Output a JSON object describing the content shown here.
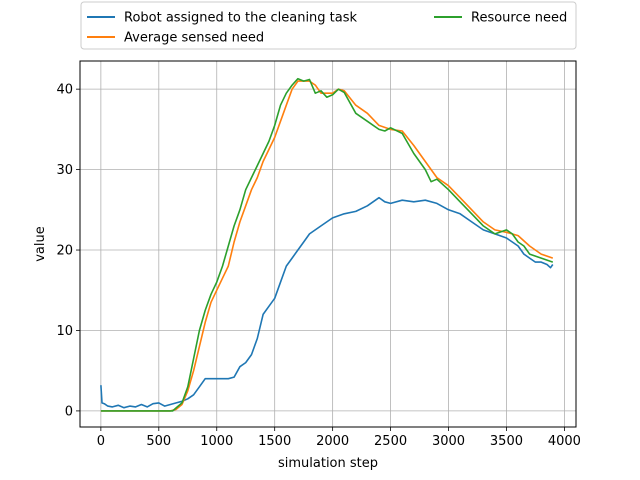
{
  "chart_data": {
    "type": "line",
    "title": "",
    "xlabel": "simulation step",
    "ylabel": "value",
    "xlim": [
      -180,
      4100
    ],
    "ylim": [
      -2,
      43.5
    ],
    "xticks": [
      0,
      500,
      1000,
      1500,
      2000,
      2500,
      3000,
      3500,
      4000
    ],
    "yticks": [
      0,
      10,
      20,
      30,
      40
    ],
    "grid": true,
    "legend": {
      "placement": "top (above plot, 2 columns)",
      "entries": [
        "Robot assigned to the cleaning task",
        "Average sensed need",
        "Resource need"
      ]
    },
    "series": [
      {
        "name": "Robot assigned to the cleaning task",
        "color": "#1f77b4",
        "points": [
          [
            0,
            3.2
          ],
          [
            10,
            1.0
          ],
          [
            30,
            0.9
          ],
          [
            60,
            0.6
          ],
          [
            100,
            0.5
          ],
          [
            150,
            0.7
          ],
          [
            200,
            0.4
          ],
          [
            250,
            0.6
          ],
          [
            300,
            0.5
          ],
          [
            350,
            0.8
          ],
          [
            400,
            0.5
          ],
          [
            450,
            0.9
          ],
          [
            500,
            1.0
          ],
          [
            550,
            0.6
          ],
          [
            600,
            0.8
          ],
          [
            650,
            1.0
          ],
          [
            700,
            1.2
          ],
          [
            750,
            1.5
          ],
          [
            800,
            2.0
          ],
          [
            850,
            3.0
          ],
          [
            900,
            4.0
          ],
          [
            1000,
            4.0
          ],
          [
            1100,
            4.0
          ],
          [
            1150,
            4.2
          ],
          [
            1200,
            5.5
          ],
          [
            1250,
            6.0
          ],
          [
            1300,
            7.0
          ],
          [
            1350,
            9.0
          ],
          [
            1400,
            12.0
          ],
          [
            1450,
            13.0
          ],
          [
            1500,
            14.0
          ],
          [
            1550,
            16.0
          ],
          [
            1600,
            18.0
          ],
          [
            1650,
            19.0
          ],
          [
            1700,
            20.0
          ],
          [
            1750,
            21.0
          ],
          [
            1800,
            22.0
          ],
          [
            1900,
            23.0
          ],
          [
            2000,
            24.0
          ],
          [
            2100,
            24.5
          ],
          [
            2200,
            24.8
          ],
          [
            2300,
            25.5
          ],
          [
            2400,
            26.5
          ],
          [
            2450,
            26.0
          ],
          [
            2500,
            25.8
          ],
          [
            2600,
            26.2
          ],
          [
            2700,
            26.0
          ],
          [
            2800,
            26.2
          ],
          [
            2900,
            25.8
          ],
          [
            3000,
            25.0
          ],
          [
            3100,
            24.5
          ],
          [
            3200,
            23.5
          ],
          [
            3300,
            22.5
          ],
          [
            3400,
            22.0
          ],
          [
            3500,
            21.5
          ],
          [
            3550,
            21.0
          ],
          [
            3600,
            20.5
          ],
          [
            3650,
            19.5
          ],
          [
            3700,
            19.0
          ],
          [
            3750,
            18.5
          ],
          [
            3800,
            18.5
          ],
          [
            3850,
            18.2
          ],
          [
            3880,
            17.8
          ],
          [
            3900,
            18.2
          ]
        ]
      },
      {
        "name": "Average sensed need",
        "color": "#ff7f0e",
        "points": [
          [
            0,
            0.0
          ],
          [
            600,
            0.0
          ],
          [
            650,
            0.2
          ],
          [
            700,
            0.8
          ],
          [
            750,
            2.5
          ],
          [
            800,
            5.0
          ],
          [
            850,
            8.0
          ],
          [
            900,
            11.0
          ],
          [
            950,
            13.5
          ],
          [
            1000,
            15.0
          ],
          [
            1050,
            16.5
          ],
          [
            1100,
            18.0
          ],
          [
            1150,
            21.0
          ],
          [
            1200,
            23.5
          ],
          [
            1250,
            25.5
          ],
          [
            1300,
            27.5
          ],
          [
            1350,
            29.0
          ],
          [
            1400,
            31.0
          ],
          [
            1450,
            32.5
          ],
          [
            1500,
            34.0
          ],
          [
            1550,
            36.0
          ],
          [
            1600,
            38.0
          ],
          [
            1650,
            40.0
          ],
          [
            1700,
            41.0
          ],
          [
            1750,
            41.0
          ],
          [
            1800,
            41.0
          ],
          [
            1850,
            40.5
          ],
          [
            1900,
            39.5
          ],
          [
            1950,
            39.5
          ],
          [
            2000,
            39.5
          ],
          [
            2050,
            40.0
          ],
          [
            2100,
            39.8
          ],
          [
            2200,
            38.0
          ],
          [
            2300,
            37.0
          ],
          [
            2400,
            35.5
          ],
          [
            2500,
            35.0
          ],
          [
            2600,
            34.8
          ],
          [
            2700,
            33.0
          ],
          [
            2800,
            31.0
          ],
          [
            2900,
            29.0
          ],
          [
            3000,
            28.0
          ],
          [
            3100,
            26.5
          ],
          [
            3200,
            25.0
          ],
          [
            3300,
            23.5
          ],
          [
            3400,
            22.5
          ],
          [
            3500,
            22.2
          ],
          [
            3600,
            21.8
          ],
          [
            3700,
            20.5
          ],
          [
            3800,
            19.5
          ],
          [
            3900,
            19.0
          ]
        ]
      },
      {
        "name": "Resource need",
        "color": "#2ca02c",
        "points": [
          [
            0,
            0.0
          ],
          [
            620,
            0.0
          ],
          [
            660,
            0.5
          ],
          [
            700,
            1.0
          ],
          [
            750,
            3.0
          ],
          [
            800,
            6.5
          ],
          [
            850,
            10.0
          ],
          [
            900,
            12.5
          ],
          [
            950,
            14.5
          ],
          [
            1000,
            16.0
          ],
          [
            1050,
            18.0
          ],
          [
            1100,
            20.5
          ],
          [
            1150,
            23.0
          ],
          [
            1200,
            25.0
          ],
          [
            1250,
            27.5
          ],
          [
            1300,
            29.0
          ],
          [
            1350,
            30.5
          ],
          [
            1400,
            32.0
          ],
          [
            1450,
            33.5
          ],
          [
            1500,
            35.5
          ],
          [
            1550,
            38.0
          ],
          [
            1600,
            39.5
          ],
          [
            1650,
            40.5
          ],
          [
            1700,
            41.3
          ],
          [
            1750,
            41.0
          ],
          [
            1800,
            41.2
          ],
          [
            1850,
            39.5
          ],
          [
            1900,
            39.8
          ],
          [
            1950,
            39.0
          ],
          [
            2000,
            39.3
          ],
          [
            2050,
            40.0
          ],
          [
            2100,
            39.6
          ],
          [
            2200,
            37.0
          ],
          [
            2300,
            36.0
          ],
          [
            2400,
            35.0
          ],
          [
            2450,
            34.8
          ],
          [
            2500,
            35.2
          ],
          [
            2600,
            34.5
          ],
          [
            2700,
            32.0
          ],
          [
            2800,
            30.0
          ],
          [
            2850,
            28.5
          ],
          [
            2900,
            28.8
          ],
          [
            3000,
            27.5
          ],
          [
            3100,
            26.0
          ],
          [
            3200,
            24.5
          ],
          [
            3300,
            23.0
          ],
          [
            3400,
            22.0
          ],
          [
            3500,
            22.5
          ],
          [
            3550,
            22.0
          ],
          [
            3600,
            21.0
          ],
          [
            3650,
            20.5
          ],
          [
            3700,
            19.5
          ],
          [
            3800,
            19.0
          ],
          [
            3900,
            18.5
          ]
        ]
      }
    ]
  }
}
